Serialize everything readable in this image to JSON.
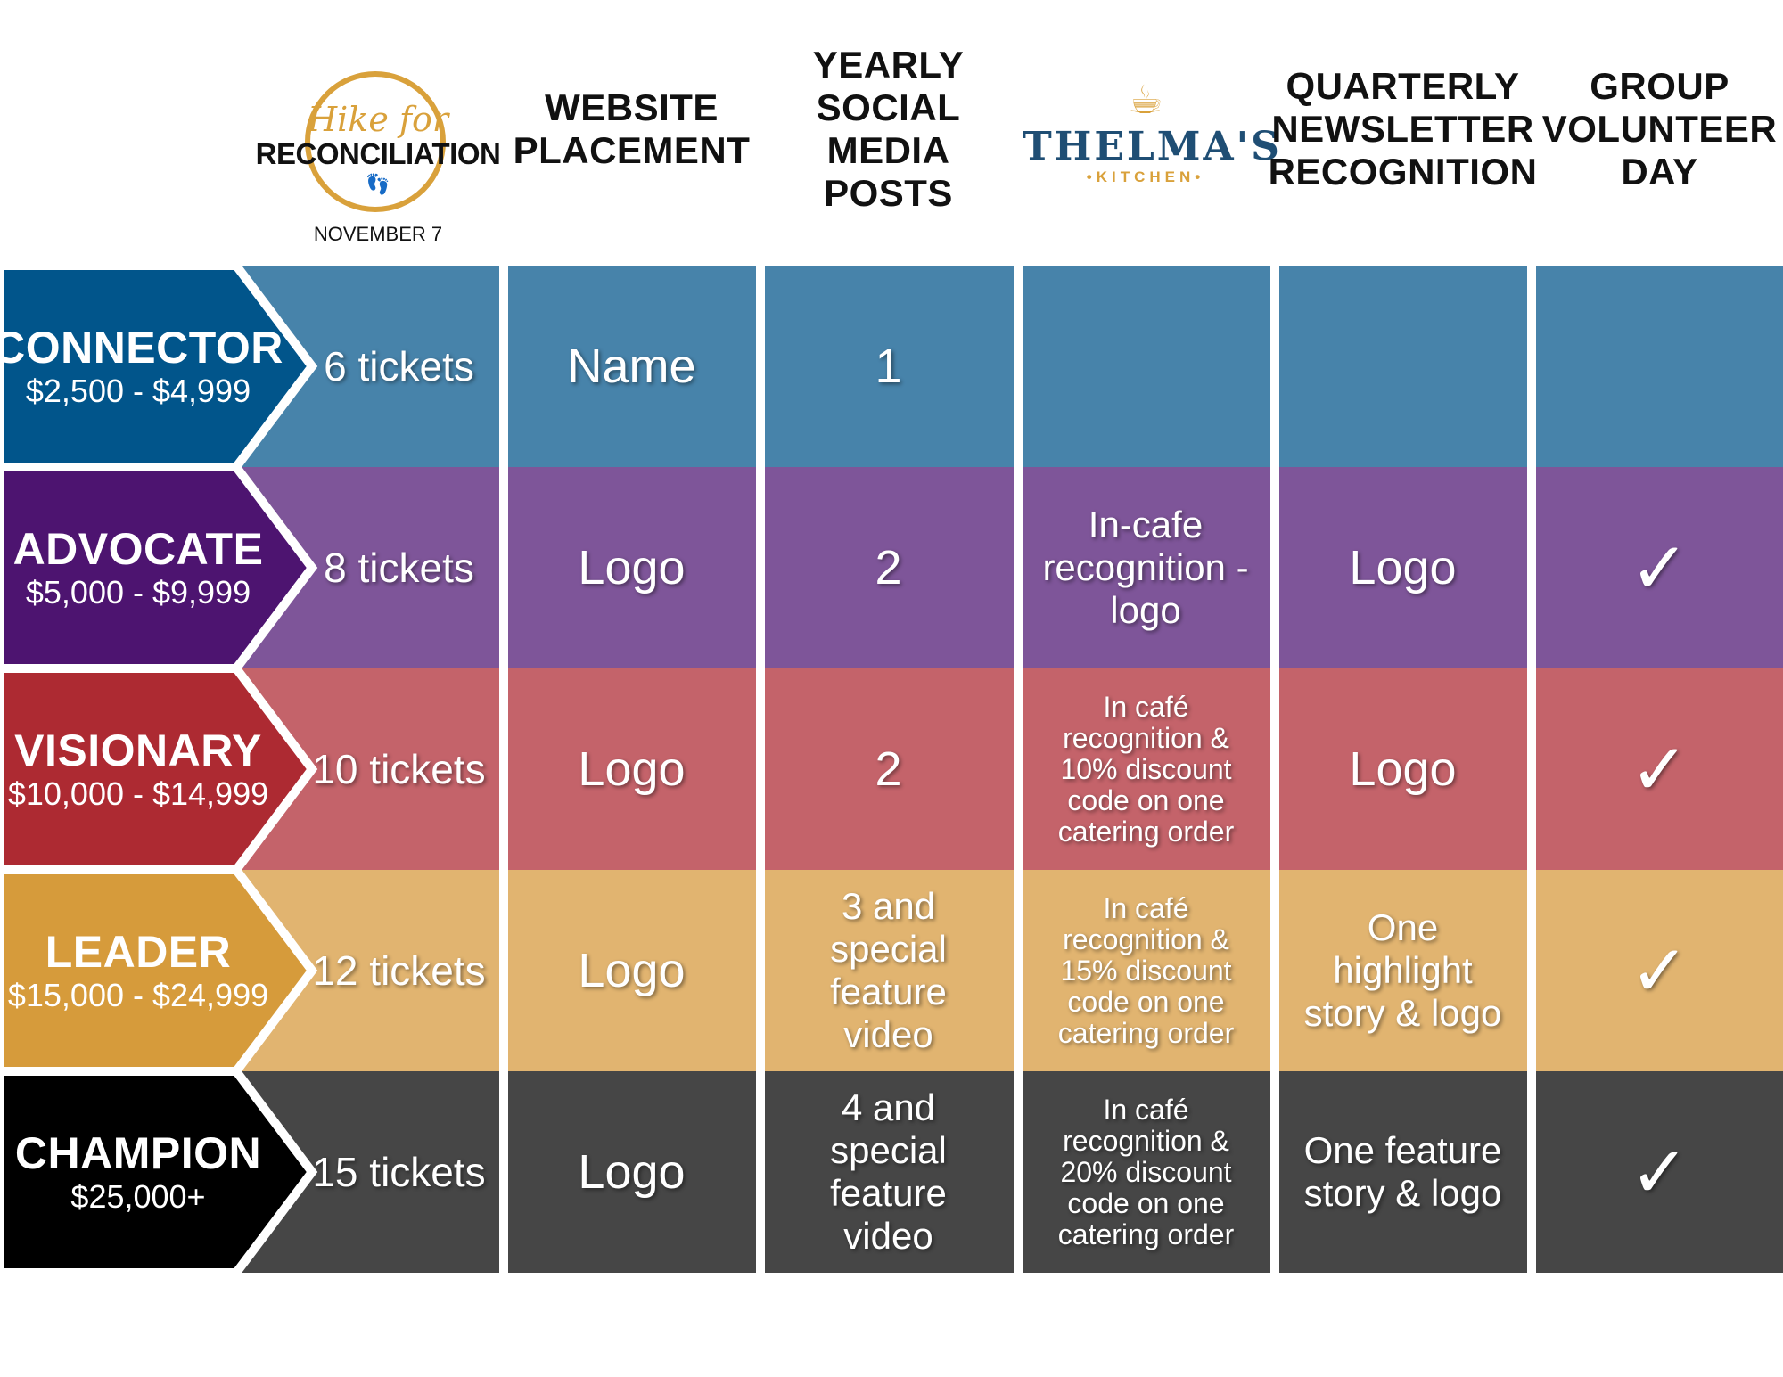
{
  "header": {
    "hike_script": "Hike for",
    "hike_word": "RECONCILIATION",
    "hike_date": "NOVEMBER 7",
    "website": [
      "WEBSITE",
      "PLACEMENT"
    ],
    "social": [
      "YEARLY",
      "SOCIAL MEDIA",
      "POSTS"
    ],
    "thelma_name": "THELMA'S",
    "thelma_sub": "KITCHEN",
    "newsletter": [
      "QUARTERLY",
      "NEWSLETTER",
      "RECOGNITION"
    ],
    "volunteer": [
      "GROUP",
      "VOLUNTEER",
      "DAY"
    ]
  },
  "tiers": [
    {
      "name": "CONNECTOR",
      "range": "$2,500 - $4,999",
      "tickets": "6 tickets",
      "website": "Name",
      "social": "1",
      "thelma": "",
      "newsletter": "",
      "volunteer": ""
    },
    {
      "name": "ADVOCATE",
      "range": "$5,000 - $9,999",
      "tickets": "8 tickets",
      "website": "Logo",
      "social": "2",
      "thelma": "In-cafe recognition - logo",
      "newsletter": "Logo",
      "volunteer": "✓"
    },
    {
      "name": "VISIONARY",
      "range": "$10,000 - $14,999",
      "tickets": "10 tickets",
      "website": "Logo",
      "social": "2",
      "thelma": "In café recognition & 10% discount code on one catering order",
      "newsletter": "Logo",
      "volunteer": "✓"
    },
    {
      "name": "LEADER",
      "range": "$15,000 - $24,999",
      "tickets": "12 tickets",
      "website": "Logo",
      "social": "3 and special feature video",
      "thelma": "In café recognition & 15% discount code on one catering order",
      "newsletter": "One highlight story & logo",
      "volunteer": "✓"
    },
    {
      "name": "CHAMPION",
      "range": "$25,000+",
      "tickets": "15 tickets",
      "website": "Logo",
      "social": "4 and special feature video",
      "thelma": "In café recognition & 20% discount code on one catering order",
      "newsletter": "One feature story & logo",
      "volunteer": "✓"
    }
  ],
  "colors": {
    "row_light": [
      "#4783aa",
      "#7e5599",
      "#c4636a",
      "#e1b470",
      "#464646"
    ],
    "row_dark": [
      "#01558b",
      "#4d1470",
      "#ad2a32",
      "#d69b3b",
      "#000000"
    ],
    "accent_gold": "#d9a13b",
    "accent_navy": "#1f4e74"
  }
}
